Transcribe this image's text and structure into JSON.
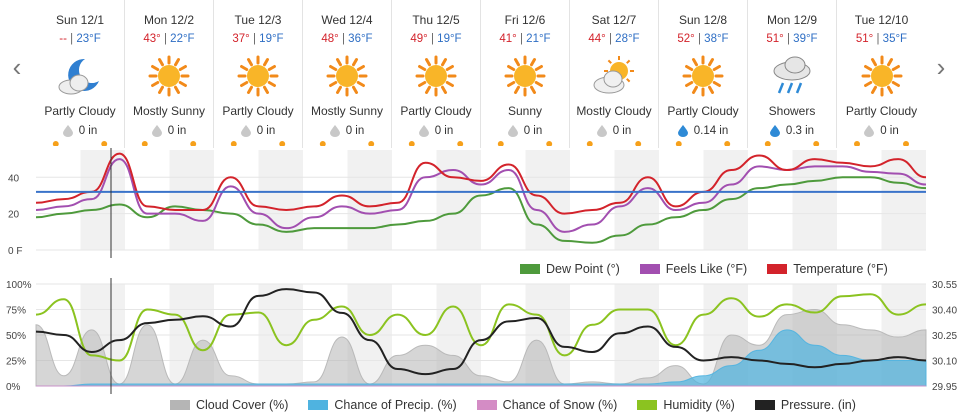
{
  "nav": {
    "prev": "‹",
    "next": "›"
  },
  "days": [
    {
      "name": "Sun 12/1",
      "hi": "--",
      "lo": "23°F",
      "icon": "partly-cloudy-night-icon",
      "cond": "Partly Cloudy",
      "precip": "0 in",
      "drop": "grey"
    },
    {
      "name": "Mon 12/2",
      "hi": "43°",
      "lo": "22°F",
      "icon": "sun-icon",
      "cond": "Mostly Sunny",
      "precip": "0 in",
      "drop": "grey"
    },
    {
      "name": "Tue 12/3",
      "hi": "37°",
      "lo": "19°F",
      "icon": "sun-icon",
      "cond": "Partly Cloudy",
      "precip": "0 in",
      "drop": "grey"
    },
    {
      "name": "Wed 12/4",
      "hi": "48°",
      "lo": "36°F",
      "icon": "sun-icon",
      "cond": "Mostly Sunny",
      "precip": "0 in",
      "drop": "grey"
    },
    {
      "name": "Thu 12/5",
      "hi": "49°",
      "lo": "19°F",
      "icon": "sun-icon",
      "cond": "Partly Cloudy",
      "precip": "0 in",
      "drop": "grey"
    },
    {
      "name": "Fri 12/6",
      "hi": "41°",
      "lo": "21°F",
      "icon": "sun-icon",
      "cond": "Sunny",
      "precip": "0 in",
      "drop": "grey"
    },
    {
      "name": "Sat 12/7",
      "hi": "44°",
      "lo": "28°F",
      "icon": "partly-cloudy-day-icon",
      "cond": "Mostly Cloudy",
      "precip": "0 in",
      "drop": "grey"
    },
    {
      "name": "Sun 12/8",
      "hi": "52°",
      "lo": "38°F",
      "icon": "sun-icon",
      "cond": "Partly Cloudy",
      "precip": "0.14 in",
      "drop": "blue"
    },
    {
      "name": "Mon 12/9",
      "hi": "51°",
      "lo": "39°F",
      "icon": "rain-icon",
      "cond": "Showers",
      "precip": "0.3 in",
      "drop": "blue"
    },
    {
      "name": "Tue 12/10",
      "hi": "51°",
      "lo": "35°F",
      "icon": "sun-icon",
      "cond": "Partly Cloudy",
      "precip": "0 in",
      "drop": "grey"
    }
  ],
  "colors": {
    "temperature": "#d3232b",
    "feels_like": "#a24fb0",
    "dew_point": "#4e9a3c",
    "freezing": "#3a73c9",
    "cloud": "#b5b5b5",
    "precip": "#4fb3e0",
    "snow": "#d48cc5",
    "humidity": "#8bc320",
    "pressure": "#222222"
  },
  "chart_data": [
    {
      "type": "line",
      "y_ticks": [
        "40",
        "20",
        "0 F"
      ],
      "ylim": [
        0,
        55
      ],
      "series": [
        {
          "name": "Dew Point (°)",
          "values": [
            18,
            20,
            22,
            25,
            18,
            24,
            22,
            20,
            14,
            10,
            12,
            12,
            12,
            14,
            16,
            20,
            30,
            34,
            14,
            5,
            4,
            8,
            14,
            18,
            22,
            28,
            34,
            36,
            38,
            40,
            40,
            37,
            34
          ]
        },
        {
          "name": "Feels Like (°F)",
          "values": [
            22,
            24,
            28,
            50,
            20,
            20,
            16,
            35,
            20,
            12,
            18,
            24,
            20,
            22,
            40,
            44,
            36,
            44,
            22,
            10,
            14,
            24,
            34,
            22,
            26,
            36,
            46,
            44,
            46,
            46,
            43,
            42,
            36
          ]
        },
        {
          "name": "Temperature (°F)",
          "values": [
            26,
            28,
            32,
            53,
            24,
            22,
            22,
            40,
            24,
            22,
            24,
            30,
            24,
            26,
            48,
            40,
            38,
            47,
            30,
            20,
            22,
            26,
            40,
            24,
            32,
            44,
            52,
            44,
            50,
            48,
            46,
            50,
            40
          ]
        }
      ],
      "freezing_line": 32
    },
    {
      "type": "area",
      "y_ticks_left": [
        "100%",
        "75%",
        "50%",
        "25%",
        "0%"
      ],
      "y_ticks_right": [
        "30.55",
        "30.40",
        "30.25",
        "30.10",
        "29.95"
      ],
      "series": [
        {
          "name": "Cloud Cover (%)",
          "values": [
            60,
            10,
            55,
            2,
            60,
            2,
            45,
            10,
            2,
            2,
            4,
            48,
            2,
            30,
            40,
            30,
            10,
            4,
            45,
            2,
            4,
            2,
            8,
            20,
            2,
            50,
            40,
            70,
            75,
            60,
            55,
            48,
            55
          ]
        },
        {
          "name": "Chance of Precip. (%)",
          "values": [
            0,
            0,
            2,
            2,
            2,
            2,
            2,
            2,
            2,
            2,
            2,
            2,
            2,
            2,
            2,
            2,
            2,
            2,
            2,
            2,
            2,
            2,
            2,
            4,
            10,
            20,
            35,
            55,
            40,
            30,
            25,
            25,
            25
          ]
        },
        {
          "name": "Chance of Snow (%)",
          "values": [
            0,
            0,
            0,
            0,
            0,
            0,
            0,
            0,
            0,
            0,
            0,
            0,
            0,
            0,
            0,
            0,
            0,
            0,
            0,
            0,
            0,
            0,
            0,
            0,
            0,
            0,
            0,
            0,
            0,
            0,
            0,
            0,
            0
          ]
        },
        {
          "name": "Humidity (%)",
          "values": [
            70,
            85,
            30,
            25,
            75,
            70,
            35,
            70,
            72,
            40,
            65,
            78,
            50,
            70,
            50,
            78,
            40,
            80,
            70,
            30,
            60,
            75,
            75,
            40,
            70,
            86,
            68,
            80,
            72,
            88,
            90,
            70,
            80
          ]
        },
        {
          "name": "Pressure. (in)",
          "values": [
            30.27,
            30.25,
            30.15,
            30.22,
            30.32,
            30.34,
            30.36,
            30.3,
            30.48,
            30.52,
            30.5,
            30.38,
            30.22,
            30.05,
            30.02,
            30.05,
            30.22,
            30.33,
            30.35,
            30.18,
            30.15,
            30.26,
            30.3,
            30.18,
            30.1,
            30.12,
            30.1,
            30.08,
            30.06,
            30.08,
            30.1,
            30.12,
            30.1
          ]
        }
      ]
    }
  ]
}
